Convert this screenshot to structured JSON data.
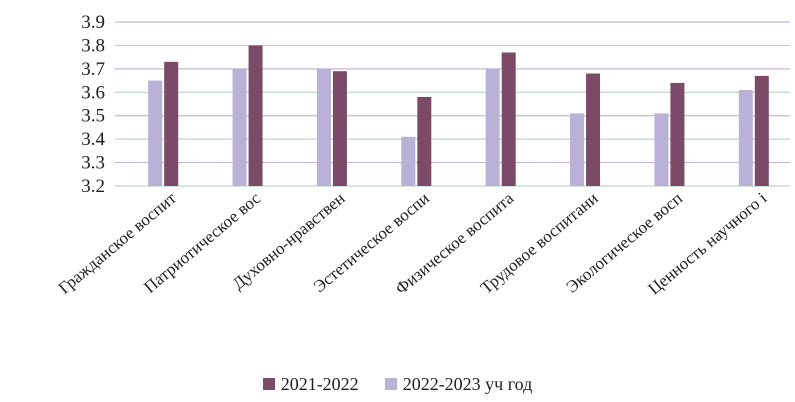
{
  "chart_data": {
    "type": "bar",
    "title": "",
    "xlabel": "",
    "ylabel": "",
    "ylim": [
      3.2,
      3.9
    ],
    "yticks": [
      "3.9",
      "3.8",
      "3.7",
      "3.6",
      "3.5",
      "3.4",
      "3.3",
      "3.2"
    ],
    "grid": true,
    "legend_position": "bottom",
    "categories": [
      "Гражданское воспит",
      "Патриотическое вос",
      "Духовно-нравствен",
      "Эстетическое воспи",
      "Физическое воспита",
      "Трудовое воспитани",
      "Экологическое восп",
      "Ценность научного і"
    ],
    "series": [
      {
        "name": "2022-2023 уч  год",
        "color": "#b9b2d6",
        "values": [
          3.65,
          3.7,
          3.7,
          3.41,
          3.7,
          3.51,
          3.51,
          3.61
        ]
      },
      {
        "name": "2021-2022",
        "color": "#7a4a66",
        "values": [
          3.73,
          3.8,
          3.69,
          3.58,
          3.77,
          3.68,
          3.64,
          3.67
        ]
      }
    ],
    "legend_order": [
      "2021-2022",
      "2022-2023 уч  год"
    ]
  }
}
